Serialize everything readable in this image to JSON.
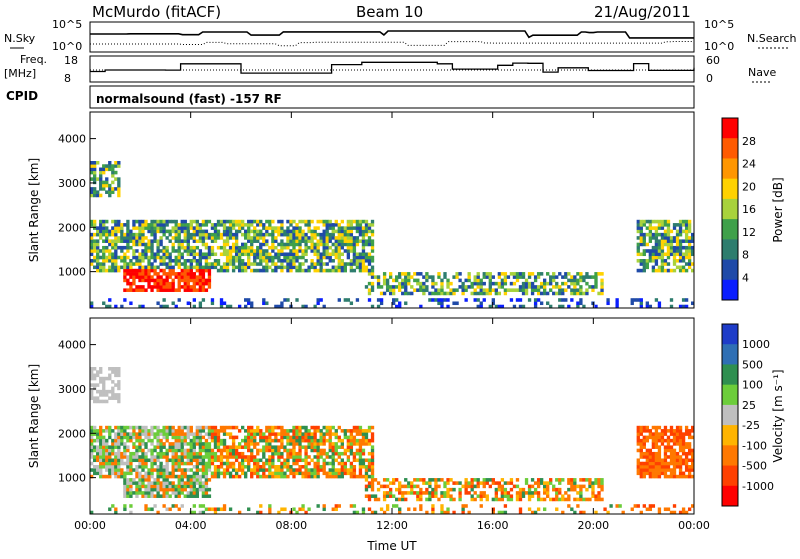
{
  "header": {
    "station": "McMurdo (fitACF)",
    "beam": "Beam 10",
    "date": "21/Aug/2011"
  },
  "panel_labels": {
    "nsky": "N.Sky",
    "nsearch": "N.Search",
    "freq_line1": "Freq.",
    "freq_line2": "[MHz]",
    "nave": "Nave",
    "cpid": "CPID",
    "cpid_value": "normalsound (fast) -157 RF"
  },
  "chart_data": [
    {
      "type": "line",
      "name": "noise",
      "yticks_left": [
        "10^5",
        "10^0"
      ],
      "yticks_right": [
        "10^5",
        "10^0"
      ]
    },
    {
      "type": "line",
      "name": "frequency-nave",
      "yticks_left": [
        "18",
        "8"
      ],
      "yticks_right": [
        "60",
        "0"
      ]
    },
    {
      "type": "heatmap",
      "name": "power",
      "ylabel": "Slant Range [km]",
      "ylim": [
        180,
        4600
      ],
      "yticks": [
        1000,
        2000,
        3000,
        4000
      ],
      "xlim": [
        0,
        24
      ],
      "xticks": [
        "00:00",
        "04:00",
        "08:00",
        "12:00",
        "16:00",
        "20:00",
        "00:00"
      ],
      "colorbar": {
        "label": "Power [dB]",
        "ticks": [
          "28",
          "24",
          "20",
          "16",
          "12",
          "8",
          "4"
        ],
        "colors": [
          "#ff0000",
          "#ff5a00",
          "#ff9600",
          "#ffd200",
          "#a8d23c",
          "#3fa04a",
          "#2e7d6e",
          "#1f4aa8",
          "#0a1eff"
        ]
      }
    },
    {
      "type": "heatmap",
      "name": "velocity",
      "ylabel": "Slant Range [km]",
      "ylim": [
        180,
        4600
      ],
      "yticks": [
        1000,
        2000,
        3000,
        4000
      ],
      "xlim": [
        0,
        24
      ],
      "xticks": [
        "00:00",
        "04:00",
        "08:00",
        "12:00",
        "16:00",
        "20:00",
        "00:00"
      ],
      "xlabel": "Time UT",
      "colorbar": {
        "label": "Velocity [m s⁻¹]",
        "ticks": [
          "1000",
          "500",
          "100",
          "25",
          "-25",
          "-100",
          "-500",
          "-1000"
        ],
        "colors": [
          "#1e3cc8",
          "#2f6fb4",
          "#2f8f50",
          "#6ccd3a",
          "#bfbfbf",
          "#ffb400",
          "#ff7800",
          "#ff4000",
          "#ff0000"
        ]
      }
    }
  ]
}
